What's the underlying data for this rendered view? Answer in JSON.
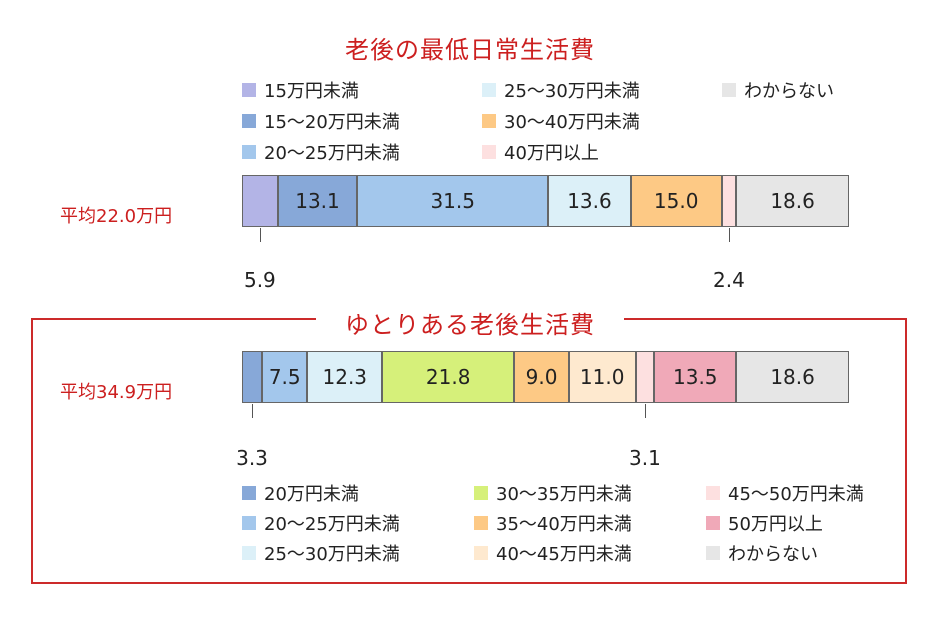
{
  "chart_data": [
    {
      "type": "stacked-bar",
      "title": "老後の最低日常生活費",
      "row_label": "平均22.0万円",
      "legend_columns": 3,
      "categories": [
        "15万円未満",
        "15〜20万円未満",
        "20〜25万円未満",
        "25〜30万円未満",
        "30〜40万円未満",
        "40万円以上",
        "わからない"
      ],
      "values": [
        5.9,
        13.1,
        31.5,
        13.6,
        15.0,
        2.4,
        18.6
      ],
      "labels": [
        "5.9",
        "13.1",
        "31.5",
        "13.6",
        "15.0",
        "2.4",
        "18.6"
      ],
      "label_outside": [
        true,
        false,
        false,
        false,
        false,
        true,
        false
      ],
      "colors": [
        "#b3b4e6",
        "#87a8d8",
        "#a3c7ec",
        "#dcf0f8",
        "#fdc985",
        "#fde0e0",
        "#e6e6e6"
      ]
    },
    {
      "type": "stacked-bar",
      "title": "ゆとりある老後生活費",
      "row_label": "平均34.9万円",
      "legend_columns": 3,
      "categories": [
        "20万円未満",
        "20〜25万円未満",
        "25〜30万円未満",
        "30〜35万円未満",
        "35〜40万円未満",
        "40〜45万円未満",
        "45〜50万円未満",
        "50万円以上",
        "わからない"
      ],
      "values": [
        3.3,
        7.5,
        12.3,
        21.8,
        9.0,
        11.0,
        3.1,
        13.5,
        18.6
      ],
      "labels": [
        "3.3",
        "7.5",
        "12.3",
        "21.8",
        "9.0",
        "11.0",
        "3.1",
        "13.5",
        "18.6"
      ],
      "label_outside": [
        true,
        false,
        false,
        false,
        false,
        false,
        true,
        false,
        false
      ],
      "colors": [
        "#87a8d8",
        "#a3c7ec",
        "#dcf0f8",
        "#d6f07a",
        "#fdc985",
        "#fee9cf",
        "#fde0e0",
        "#f0a9b8",
        "#e6e6e6"
      ]
    }
  ]
}
